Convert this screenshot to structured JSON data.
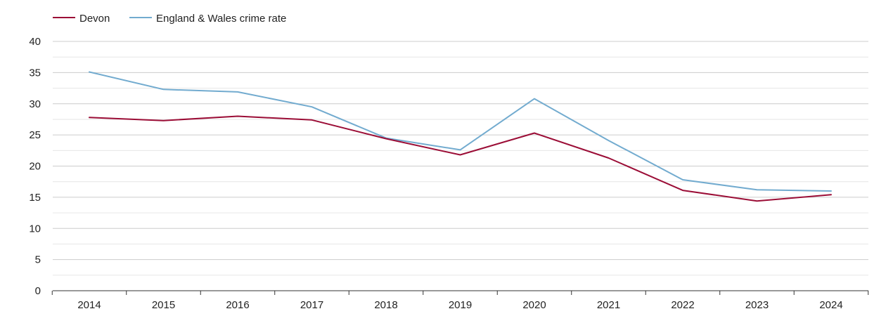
{
  "chart_data": {
    "type": "line",
    "title": "",
    "xlabel": "",
    "ylabel": "",
    "categories": [
      "2014",
      "2015",
      "2016",
      "2017",
      "2018",
      "2019",
      "2020",
      "2021",
      "2022",
      "2023",
      "2024"
    ],
    "ylim": [
      0,
      40
    ],
    "y_ticks": [
      0,
      5,
      10,
      15,
      20,
      25,
      30,
      35,
      40
    ],
    "grid": true,
    "legend_position": "top-left",
    "series": [
      {
        "name": "Devon",
        "color": "#9b0d36",
        "values": [
          27.8,
          27.3,
          28.0,
          27.4,
          24.4,
          21.8,
          25.3,
          21.3,
          16.1,
          14.4,
          15.4
        ]
      },
      {
        "name": "England & Wales crime rate",
        "color": "#72abcf",
        "values": [
          35.1,
          32.3,
          31.9,
          29.5,
          24.5,
          22.6,
          30.8,
          24.1,
          17.8,
          16.2,
          16.0
        ]
      }
    ]
  }
}
